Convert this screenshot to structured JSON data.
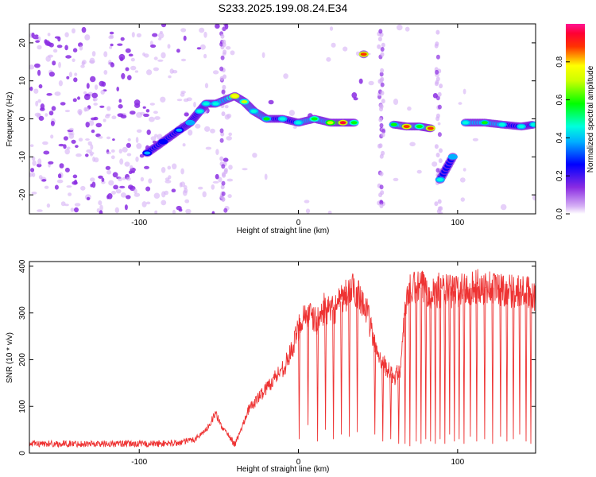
{
  "title": "S233.2025.199.08.24.E34",
  "chart_data": [
    {
      "type": "heatmap",
      "xlabel": "Height of straight line (km)",
      "ylabel": "Frequency (Hz)",
      "xlim": [
        -169,
        149
      ],
      "ylim": [
        -25,
        25
      ],
      "xticks": [
        -100,
        0,
        100
      ],
      "xtick_labels": [
        "-100",
        "0",
        "100"
      ],
      "yticks": [
        -20,
        -10,
        0,
        10,
        20
      ],
      "ytick_labels": [
        "-20",
        "-10",
        "0",
        "10",
        "20"
      ],
      "colorbar": {
        "label": "Normalized spectral amplitude",
        "range": [
          0,
          1
        ],
        "ticks": [
          0.0,
          0.2,
          0.4,
          0.6,
          0.8
        ],
        "tick_labels": [
          "0.0",
          "0.2",
          "0.4",
          "0.6",
          "0.8"
        ],
        "colormap": [
          "#ffffff",
          "#8a2be2",
          "#0000ff",
          "#00ffff",
          "#00ff00",
          "#ffff00",
          "#ff0000",
          "#ff1493"
        ]
      },
      "signal_trace": [
        {
          "x": -95,
          "y": -9,
          "amp": 0.35
        },
        {
          "x": -85,
          "y": -6,
          "amp": 0.3
        },
        {
          "x": -75,
          "y": -3,
          "amp": 0.35
        },
        {
          "x": -68,
          "y": -1,
          "amp": 0.4
        },
        {
          "x": -62,
          "y": 2,
          "amp": 0.45
        },
        {
          "x": -58,
          "y": 4,
          "amp": 0.5
        },
        {
          "x": -52,
          "y": 4,
          "amp": 0.45
        },
        {
          "x": -40,
          "y": 6,
          "amp": 0.8
        },
        {
          "x": -34,
          "y": 4.5,
          "amp": 0.65
        },
        {
          "x": -28,
          "y": 2,
          "amp": 0.5
        },
        {
          "x": -20,
          "y": 0,
          "amp": 0.55
        },
        {
          "x": -10,
          "y": 0,
          "amp": 0.45
        },
        {
          "x": 0,
          "y": -1,
          "amp": 0.5
        },
        {
          "x": 10,
          "y": 0,
          "amp": 0.6
        },
        {
          "x": 20,
          "y": -1,
          "amp": 0.7
        },
        {
          "x": 28,
          "y": -1,
          "amp": 0.95
        },
        {
          "x": 35,
          "y": -1,
          "amp": 0.6
        },
        {
          "x": 41,
          "y": 17,
          "amp": 0.9
        },
        {
          "x": 60,
          "y": -1.5,
          "amp": 0.55
        },
        {
          "x": 68,
          "y": -2,
          "amp": 0.9
        },
        {
          "x": 76,
          "y": -2,
          "amp": 0.6
        },
        {
          "x": 83,
          "y": -2.5,
          "amp": 0.9
        },
        {
          "x": 89,
          "y": -16,
          "amp": 0.5
        },
        {
          "x": 97,
          "y": -10,
          "amp": 0.4
        },
        {
          "x": 105,
          "y": -1,
          "amp": 0.5
        },
        {
          "x": 117,
          "y": -1,
          "amp": 0.55
        },
        {
          "x": 128,
          "y": -1.5,
          "amp": 0.5
        },
        {
          "x": 140,
          "y": -2,
          "amp": 0.5
        },
        {
          "x": 148,
          "y": -1.5,
          "amp": 0.45
        }
      ]
    },
    {
      "type": "line",
      "xlabel": "Height of straight line (km)",
      "ylabel": "SNR (10 * v/v)",
      "xlim": [
        -169,
        149
      ],
      "ylim": [
        0,
        410
      ],
      "xticks": [
        -100,
        0,
        100
      ],
      "xtick_labels": [
        "-100",
        "0",
        "100"
      ],
      "yticks": [
        0,
        100,
        200,
        300,
        400
      ],
      "ytick_labels": [
        "0",
        "100",
        "200",
        "300",
        "400"
      ],
      "color": "#ee3333",
      "series": [
        {
          "x": [
            -169,
            -150,
            -130,
            -110,
            -90,
            -75,
            -65,
            -58,
            -52,
            -48,
            -44,
            -40,
            -36,
            -32,
            -26,
            -20,
            -14,
            -8,
            -3,
            0,
            4,
            8,
            12,
            16,
            20,
            26,
            32,
            36,
            40,
            44,
            48,
            52,
            56,
            60,
            64,
            68,
            72,
            78,
            84,
            90,
            96,
            102,
            110,
            120,
            130,
            140,
            149
          ],
          "y": [
            20,
            20,
            20,
            20,
            20,
            22,
            30,
            50,
            85,
            55,
            40,
            18,
            50,
            90,
            115,
            140,
            165,
            190,
            230,
            270,
            300,
            290,
            280,
            310,
            300,
            320,
            345,
            350,
            330,
            290,
            230,
            200,
            180,
            160,
            180,
            340,
            350,
            355,
            345,
            350,
            345,
            350,
            355,
            355,
            350,
            345,
            340
          ]
        }
      ],
      "dropouts": [
        {
          "x": 0.5,
          "y": 30
        },
        {
          "x": 6,
          "y": 60
        },
        {
          "x": 12,
          "y": 25
        },
        {
          "x": 17,
          "y": 50
        },
        {
          "x": 22,
          "y": 30
        },
        {
          "x": 27,
          "y": 40
        },
        {
          "x": 32,
          "y": 35
        },
        {
          "x": 37,
          "y": 45
        },
        {
          "x": 48,
          "y": 40
        },
        {
          "x": 53,
          "y": 25
        },
        {
          "x": 58,
          "y": 30
        },
        {
          "x": 63,
          "y": 20
        },
        {
          "x": 67,
          "y": 20
        },
        {
          "x": 70,
          "y": 15
        },
        {
          "x": 74,
          "y": 25
        },
        {
          "x": 77,
          "y": 20
        },
        {
          "x": 80,
          "y": 30
        },
        {
          "x": 83,
          "y": 25
        },
        {
          "x": 86,
          "y": 20
        },
        {
          "x": 89,
          "y": 30
        },
        {
          "x": 92,
          "y": 20
        },
        {
          "x": 95,
          "y": 40
        },
        {
          "x": 98,
          "y": 25
        },
        {
          "x": 101,
          "y": 30
        },
        {
          "x": 104,
          "y": 20
        },
        {
          "x": 108,
          "y": 35
        },
        {
          "x": 112,
          "y": 25
        },
        {
          "x": 117,
          "y": 30
        },
        {
          "x": 122,
          "y": 20
        },
        {
          "x": 127,
          "y": 35
        },
        {
          "x": 131,
          "y": 25
        },
        {
          "x": 135,
          "y": 30
        },
        {
          "x": 139,
          "y": 40
        },
        {
          "x": 143,
          "y": 25
        },
        {
          "x": 146,
          "y": 20
        }
      ]
    }
  ]
}
